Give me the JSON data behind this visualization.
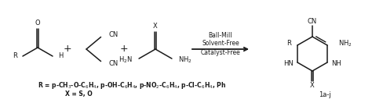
{
  "bg_color": "#ffffff",
  "fig_width": 4.74,
  "fig_height": 1.41,
  "dpi": 100,
  "line_color": "#1a1a1a",
  "line_width": 1.1,
  "font_size": 6.0,
  "footnote1": "R = p-CH$_3$-O-C$_6$H$_4$, p-OH-C$_6$H$_4$, p-NO$_2$-C$_6$H$_4$, p-Cl-C$_6$H$_4$, Ph",
  "footnote2": "X = S, O",
  "label_product": "1a-j",
  "condition1": "Ball-Mill",
  "condition2": "Solvent-Free",
  "condition3": "Catalyst-Free"
}
